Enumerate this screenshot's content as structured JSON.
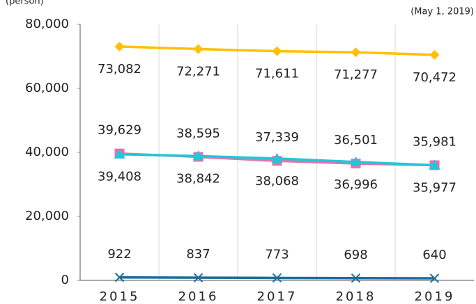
{
  "chart_data": {
    "type": "line",
    "y_label": "(person)",
    "note": "(May 1, 2019)",
    "categories": [
      "2015",
      "2016",
      "2017",
      "2018",
      "2019"
    ],
    "ylim": [
      0,
      80000
    ],
    "yticks": [
      0,
      {
        "value": 20000,
        "label": "20,000"
      },
      {
        "value": 40000,
        "label": "40,000"
      },
      {
        "value": 60000,
        "label": "60,000"
      },
      {
        "value": 80000,
        "label": "80,000"
      }
    ],
    "grid": "vertical",
    "series": [
      {
        "color": "#ffc000",
        "marker": "diamond",
        "label_position": "below",
        "values": [
          73082,
          72271,
          71611,
          71277,
          70472
        ],
        "value_labels": [
          "73,082",
          "72,271",
          "71,611",
          "71,277",
          "70,472"
        ]
      },
      {
        "color": "#ee6eaa",
        "marker": "square",
        "label_position": "above",
        "values": [
          39629,
          38595,
          37339,
          36501,
          35981
        ],
        "value_labels": [
          "39,629",
          "38,595",
          "37,339",
          "36,501",
          "35,981"
        ]
      },
      {
        "color": "#1ec8d8",
        "marker": "triangle",
        "label_position": "below",
        "values": [
          39408,
          38842,
          38068,
          36996,
          35977
        ],
        "value_labels": [
          "39,408",
          "38,842",
          "38,068",
          "36,996",
          "35,977"
        ]
      },
      {
        "color": "#1f6c99",
        "marker": "x",
        "label_position": "above",
        "values": [
          922,
          837,
          773,
          698,
          640
        ],
        "value_labels": [
          "922",
          "837",
          "773",
          "698",
          "640"
        ]
      }
    ]
  }
}
